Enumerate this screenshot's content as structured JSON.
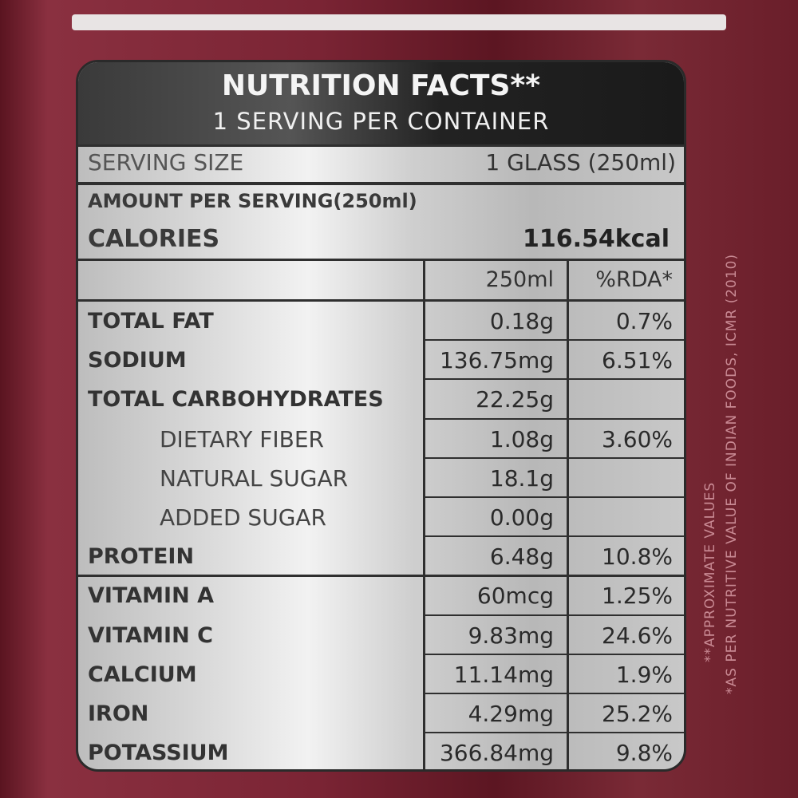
{
  "header": {
    "title": "NUTRITION FACTS**",
    "subtitle": "1 SERVING PER CONTAINER"
  },
  "serving": {
    "label": "SERVING SIZE",
    "value": "1 GLASS (250ml)"
  },
  "amount_per_serving": "AMOUNT PER SERVING(250ml)",
  "calories": {
    "label": "CALORIES",
    "value": "116.54kcal"
  },
  "table": {
    "columns": [
      "250ml",
      "%RDA*"
    ],
    "groups": [
      {
        "rows": [
          {
            "name": "TOTAL FAT",
            "amount": "0.18g",
            "rda": "0.7%"
          },
          {
            "name": "SODIUM",
            "amount": "136.75mg",
            "rda": "6.51%"
          },
          {
            "name": "TOTAL CARBOHYDRATES",
            "amount": "22.25g",
            "rda": null,
            "components": [
              {
                "name": "DIETARY FIBER",
                "amount": "1.08g",
                "rda": "3.60%"
              },
              {
                "name": "NATURAL SUGAR",
                "amount": "18.1g",
                "rda": null
              },
              {
                "name": "ADDED SUGAR",
                "amount": "0.00g",
                "rda": null
              }
            ]
          },
          {
            "name": "PROTEIN",
            "amount": "6.48g",
            "rda": "10.8%"
          }
        ]
      },
      {
        "rows": [
          {
            "name": "VITAMIN A",
            "amount": "60mcg",
            "rda": "1.25%"
          },
          {
            "name": "VITAMIN C",
            "amount": "9.83mg",
            "rda": "24.6%"
          },
          {
            "name": "CALCIUM",
            "amount": "11.14mg",
            "rda": "1.9%"
          },
          {
            "name": "IRON",
            "amount": "4.29mg",
            "rda": "25.2%"
          },
          {
            "name": "POTASSIUM",
            "amount": "366.84mg",
            "rda": "9.8%"
          }
        ]
      }
    ]
  },
  "notes": [
    "**APPROXIMATE VALUES",
    "*AS PER NUTRITIVE VALUE OF INDIAN FOODS, ICMR (2010)"
  ]
}
